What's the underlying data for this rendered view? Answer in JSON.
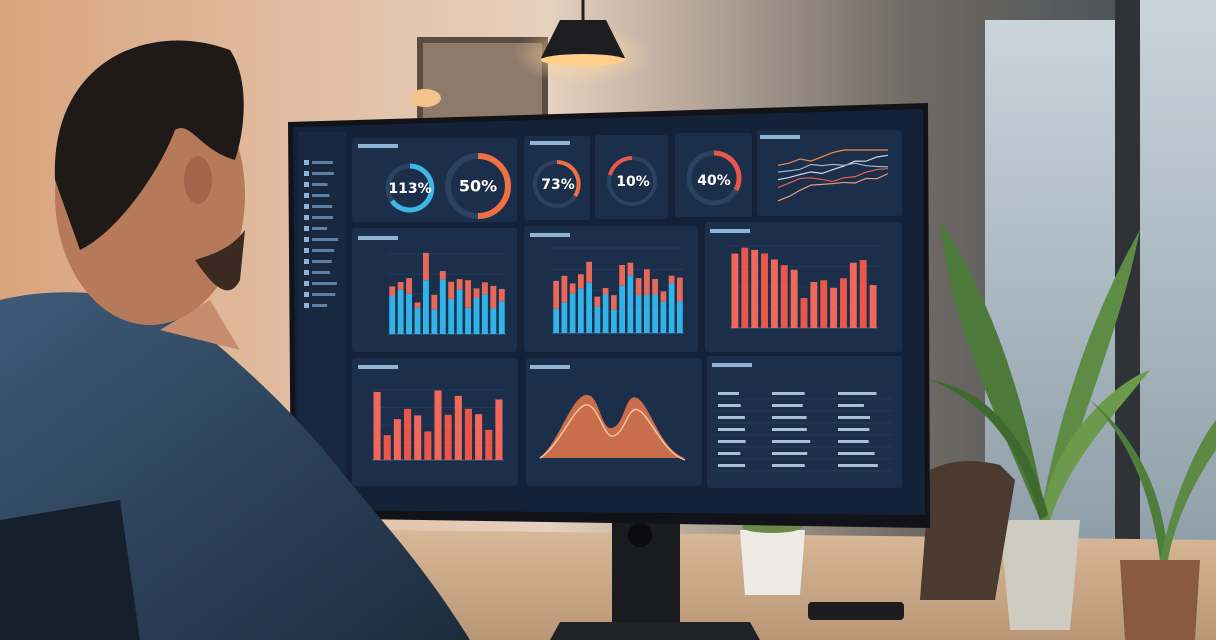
{
  "screen": {
    "gauges": [
      "113%",
      "50%",
      "73%",
      "10%",
      "40%"
    ]
  }
}
